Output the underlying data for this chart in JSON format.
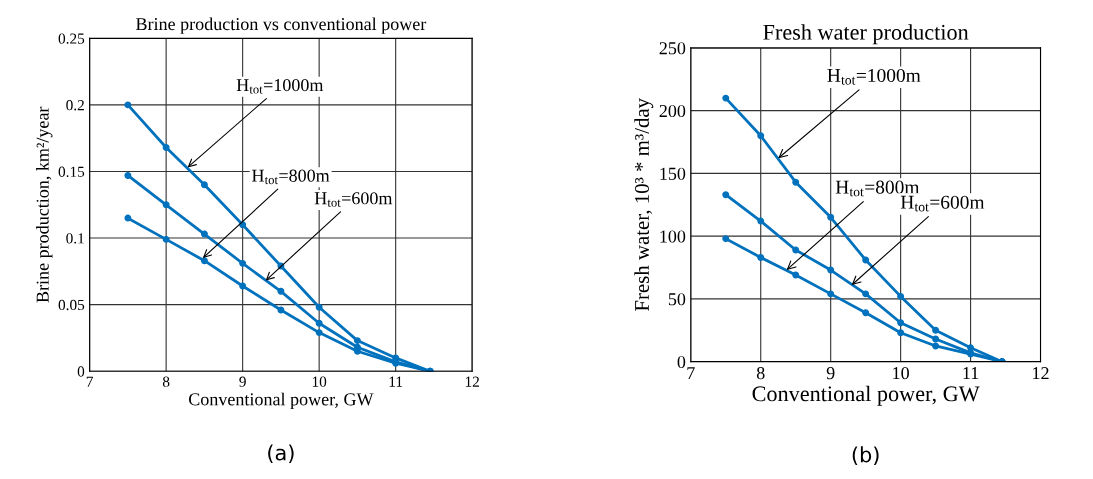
{
  "chart_data": [
    {
      "type": "line",
      "title": "Brine production vs conventional power",
      "xlabel": "Conventional power, GW",
      "ylabel": "Brine production, km²/year",
      "xlim": [
        7,
        12
      ],
      "ylim": [
        0,
        0.25
      ],
      "xticks": [
        7,
        8,
        9,
        10,
        11,
        12
      ],
      "yticks": [
        0,
        0.05,
        0.1,
        0.15,
        0.2,
        0.25
      ],
      "grid": true,
      "marker": "circle",
      "line_style": "solid",
      "legend": false,
      "x": [
        7.5,
        8,
        8.5,
        9,
        9.5,
        10,
        10.5,
        11,
        11.45
      ],
      "series": [
        {
          "color": "#0072bd",
          "values": [
            0.2,
            0.168,
            0.14,
            0.11,
            0.079,
            0.048,
            0.023,
            0.01,
            0
          ]
        },
        {
          "color": "#0072bd",
          "values": [
            0.147,
            0.125,
            0.103,
            0.081,
            0.06,
            0.036,
            0.018,
            0.007,
            0
          ]
        },
        {
          "color": "#0072bd",
          "values": [
            0.115,
            0.099,
            0.083,
            0.064,
            0.046,
            0.029,
            0.015,
            0.006,
            0
          ]
        }
      ],
      "annotations": [
        {
          "text": "H$_{tot}$=1000m",
          "x": 8.28,
          "y": 0.153
        },
        {
          "text": "H$_{tot}$=800m",
          "x": 8.48,
          "y": 0.085
        },
        {
          "text": "H$_{tot}$=600m",
          "x": 9.3,
          "y": 0.068
        },
        "(a)"
      ]
    },
    {
      "type": "line",
      "title": "Fresh water production",
      "xlabel": "Conventional power, GW",
      "ylabel": "Fresh water, 10³ * m³/day",
      "xlim": [
        7,
        12
      ],
      "ylim": [
        0,
        250
      ],
      "xticks": [
        7,
        8,
        9,
        10,
        11,
        12
      ],
      "yticks": [
        0,
        50,
        100,
        150,
        200,
        250
      ],
      "grid": true,
      "marker": "circle",
      "line_style": "solid",
      "legend": false,
      "x": [
        7.5,
        8,
        8.5,
        9,
        9.5,
        10,
        10.5,
        11,
        11.45
      ],
      "series": [
        {
          "color": "#0072bd",
          "values": [
            210,
            180,
            143,
            115,
            81,
            52,
            25,
            11,
            0
          ]
        },
        {
          "color": "#0072bd",
          "values": [
            133,
            112,
            89,
            73,
            54,
            31,
            18,
            7,
            0
          ]
        },
        {
          "color": "#0072bd",
          "values": [
            98,
            83,
            69,
            54,
            39,
            23,
            12.5,
            6,
            0
          ]
        }
      ],
      "annotations": [
        {
          "text": "H$_{tot}$=1000m",
          "x": 8.25,
          "y": 162
        },
        {
          "text": "H$_{tot}$=800m",
          "x": 8.37,
          "y": 73
        },
        {
          "text": "H$_{tot}$=600m",
          "x": 9.3,
          "y": 61
        },
        "(b)"
      ]
    }
  ]
}
